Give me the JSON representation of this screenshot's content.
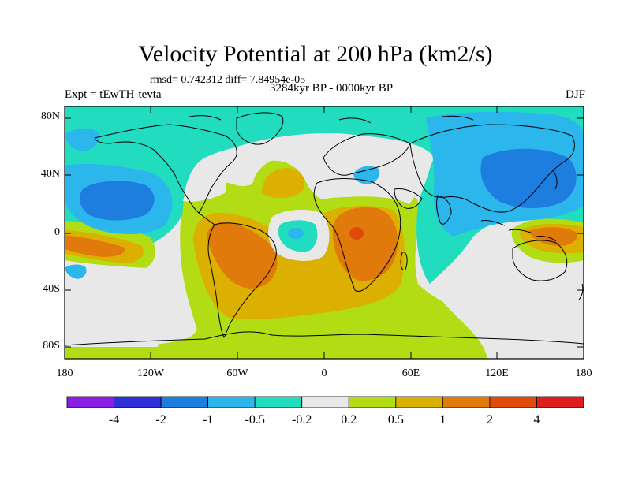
{
  "header": {
    "title": "Velocity Potential at 200 hPa (km2/s)",
    "stats": "rmsd= 0.742312 diff= 7.84954e-05",
    "period": "3284kyr BP - 0000kyr BP",
    "experiment": "Expt = tEwTH-tevta",
    "season": "DJF"
  },
  "axes": {
    "lat_labels": [
      "80N",
      "40N",
      "0",
      "40S",
      "80S"
    ],
    "lon_labels": [
      "180",
      "120W",
      "60W",
      "0",
      "60E",
      "120E",
      "180"
    ]
  },
  "colorbar": {
    "labels": [
      "-4",
      "-2",
      "-1",
      "-0.5",
      "-0.2",
      "0.2",
      "0.5",
      "1",
      "2",
      "4"
    ],
    "colors": [
      "#8a1fe3",
      "#2f2fd6",
      "#1e7ee0",
      "#2bb6ec",
      "#22dcc0",
      "#e8e8e8",
      "#b2dc14",
      "#dcb000",
      "#e07a0a",
      "#e04a0a",
      "#e01c1c"
    ]
  },
  "colors": {
    "ocean_background": "#e8e8e8",
    "coastline": "#000000"
  }
}
